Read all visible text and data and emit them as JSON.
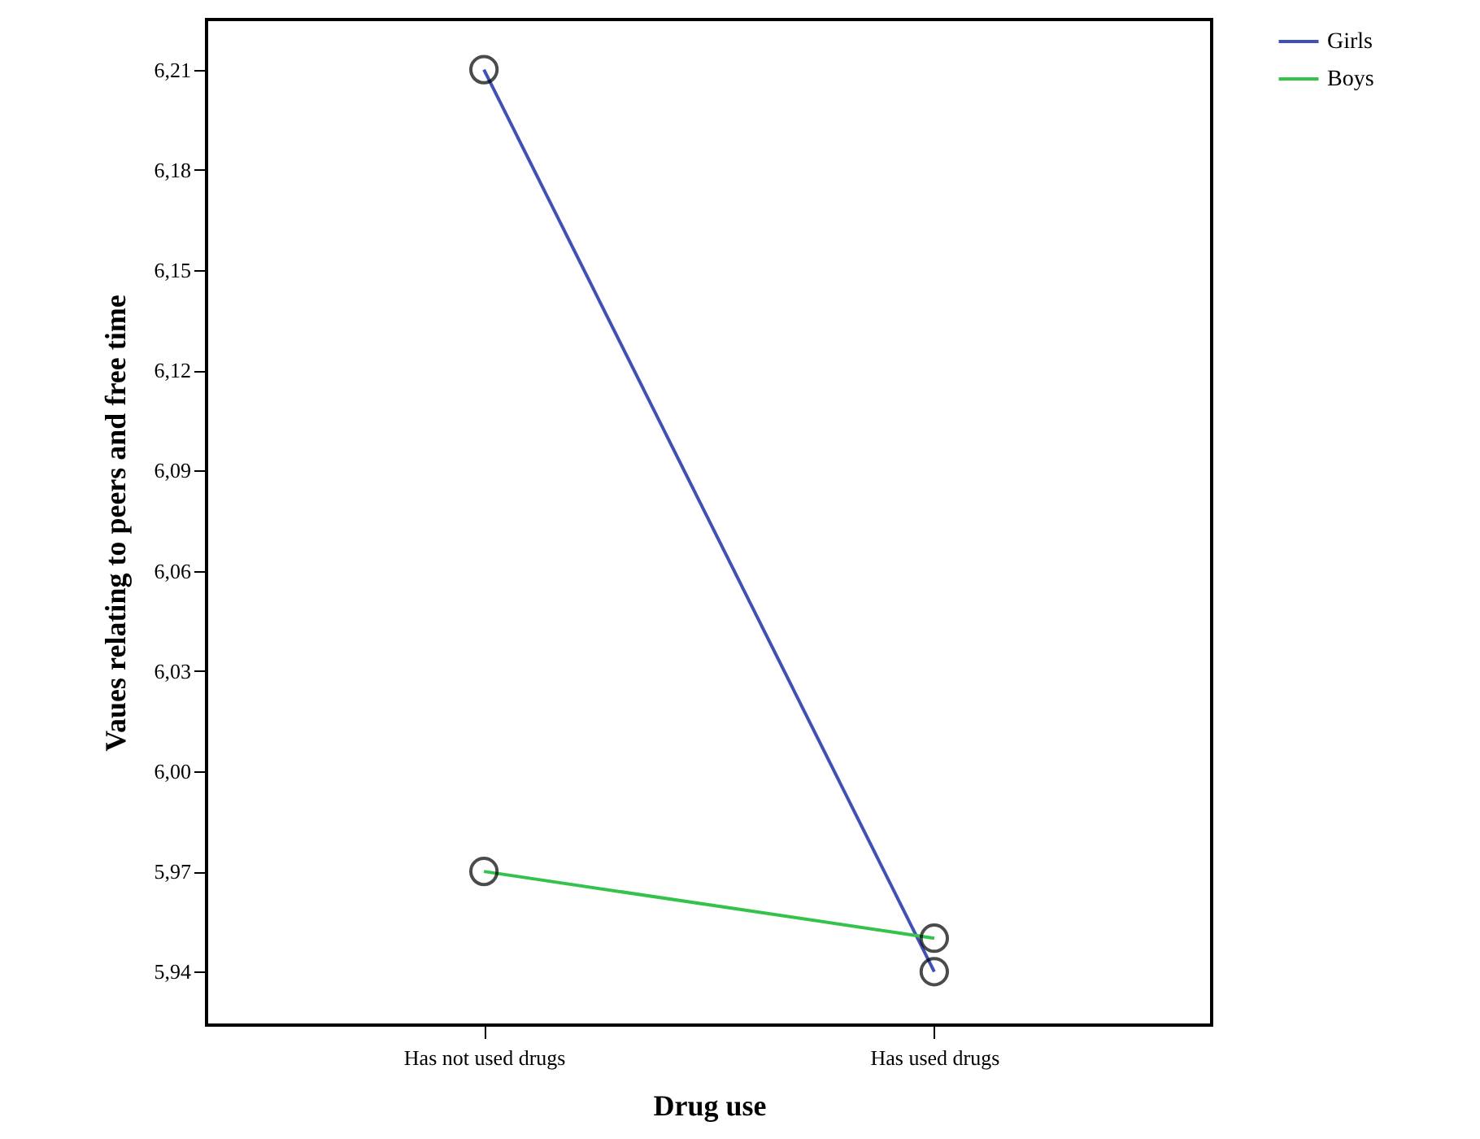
{
  "chart_data": {
    "type": "line",
    "xlabel": "Drug use",
    "ylabel": "Vaues relating to peers and free time",
    "categories": [
      "Has not used drugs",
      "Has used drugs"
    ],
    "series": [
      {
        "name": "Girls",
        "color": "#3f51b5",
        "values": [
          6.21,
          5.94
        ]
      },
      {
        "name": "Boys",
        "color": "#33c24a",
        "values": [
          5.97,
          5.95
        ]
      }
    ],
    "ylim": [
      5.924,
      6.225
    ],
    "yticks": [
      {
        "value": 5.94,
        "label": "5,94"
      },
      {
        "value": 5.97,
        "label": "5,97"
      },
      {
        "value": 6.0,
        "label": "6,00"
      },
      {
        "value": 6.03,
        "label": "6,03"
      },
      {
        "value": 6.06,
        "label": "6,06"
      },
      {
        "value": 6.09,
        "label": "6,09"
      },
      {
        "value": 6.12,
        "label": "6,12"
      },
      {
        "value": 6.15,
        "label": "6,15"
      },
      {
        "value": 6.18,
        "label": "6,18"
      },
      {
        "value": 6.21,
        "label": "6,21"
      }
    ],
    "grid": false,
    "legend": "top right",
    "marker": "circle",
    "line_style": "solid"
  }
}
